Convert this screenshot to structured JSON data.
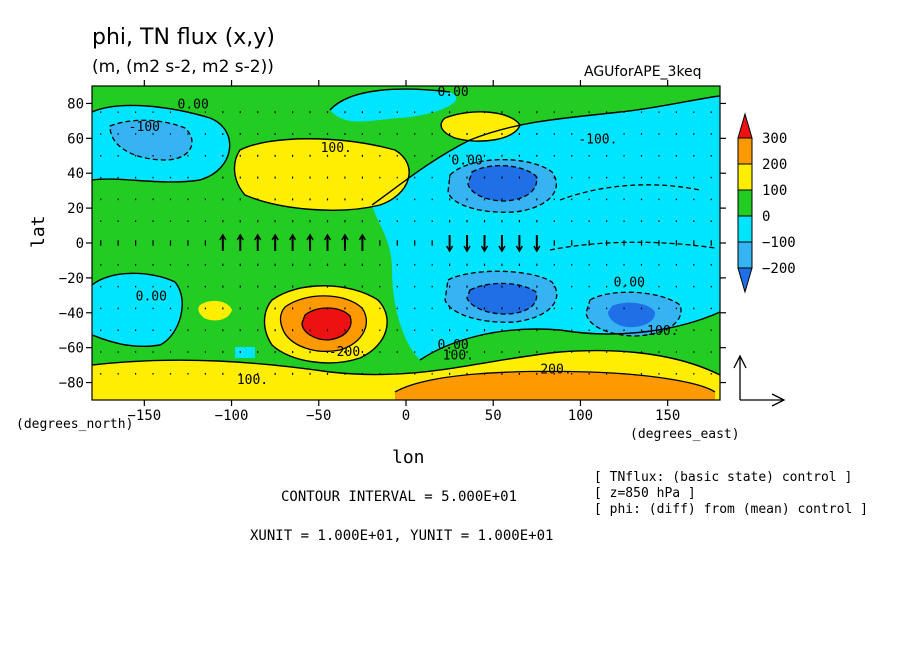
{
  "header": {
    "title": "phi, TN flux (x,y)",
    "units": "(m, (m2 s-2, m2 s-2))",
    "experiment": "AGUforAPE_3keq"
  },
  "chart_data": {
    "type": "heatmap",
    "title": "phi, TN flux (x,y)",
    "xlabel": "lon",
    "ylabel": "lat",
    "x_unit_label": "(degrees_east)",
    "y_unit_label": "(degrees_north)",
    "xlim": [
      -180,
      180
    ],
    "ylim": [
      -90,
      90
    ],
    "x_ticks": [
      -150,
      -100,
      -50,
      0,
      50,
      100,
      150
    ],
    "y_ticks": [
      -80,
      -60,
      -40,
      -20,
      0,
      20,
      40,
      60,
      80
    ],
    "colorbar": {
      "levels": [
        -200,
        -100,
        0,
        100,
        200,
        300
      ],
      "colors": [
        "#1f6fe6",
        "#35b3f2",
        "#00e5ff",
        "#22cc22",
        "#ffee00",
        "#ff9900",
        "#ee1111"
      ]
    },
    "contour_labels": [
      {
        "text": "0.00",
        "lon": 27,
        "lat": 87
      },
      {
        "text": "-100",
        "lon": -150,
        "lat": 67
      },
      {
        "text": "0.00",
        "lon": -122,
        "lat": 80
      },
      {
        "text": "100.",
        "lon": -40,
        "lat": 55
      },
      {
        "text": "0.00",
        "lon": 35,
        "lat": 48
      },
      {
        "text": "-100.",
        "lon": 110,
        "lat": 60
      },
      {
        "text": "0.00",
        "lon": -146,
        "lat": -30
      },
      {
        "text": "0.00",
        "lon": 128,
        "lat": -22
      },
      {
        "text": "0.00",
        "lon": 27,
        "lat": -58
      },
      {
        "text": "100.",
        "lon": 30,
        "lat": -64
      },
      {
        "text": "-200.",
        "lon": -33,
        "lat": -62
      },
      {
        "text": "-100.",
        "lon": 145,
        "lat": -50
      },
      {
        "text": "100.",
        "lon": -88,
        "lat": -78
      },
      {
        "text": "200.",
        "lon": 86,
        "lat": -72
      }
    ],
    "features": [
      {
        "kind": "high",
        "lon": -45,
        "lat": -45,
        "max": 300
      },
      {
        "kind": "low",
        "lon": 52,
        "lat": 38,
        "min": -200
      },
      {
        "kind": "low",
        "lon": 52,
        "lat": -35,
        "min": -200
      },
      {
        "kind": "low",
        "lon": 125,
        "lat": -42,
        "min": -200
      },
      {
        "kind": "high",
        "lon": 60,
        "lat": -78,
        "max": 200
      }
    ],
    "reference_vector": {
      "xunit": 10,
      "yunit": 10
    }
  },
  "footer": {
    "contour_interval": "CONTOUR INTERVAL = 5.000E+01",
    "units_line": "XUNIT = 1.000E+01, YUNIT = 1.000E+01",
    "notes": [
      "[ TNflux: (basic state) control ]",
      "[ z=850 hPa ]",
      "[ phi: (diff) from (mean) control ]"
    ]
  }
}
